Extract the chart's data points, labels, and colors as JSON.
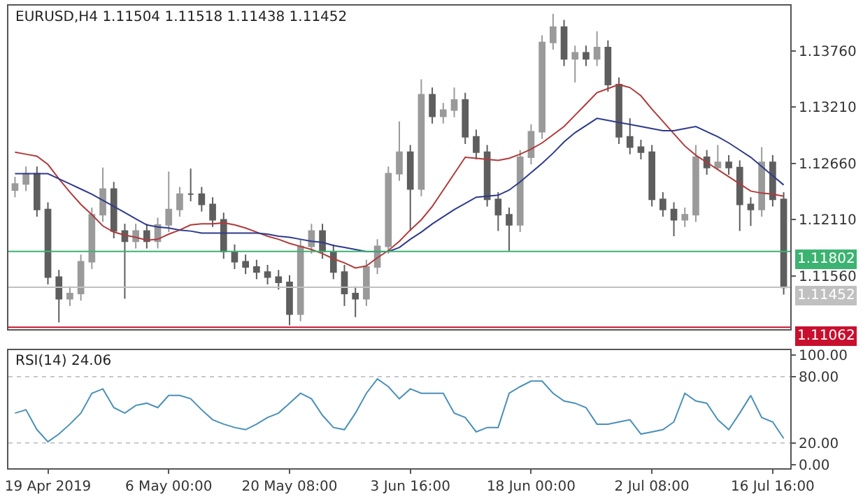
{
  "chart_data": [
    {
      "type": "candlestick",
      "title": "EURUSD,H4 1.11504 1.11518 1.11438 1.11452",
      "colors": [
        "#9a9a9a",
        "#9a9a9a",
        "#5e5e5e",
        "#5e5e5e",
        "#5e5e5e",
        "#9a9a9a",
        "#9a9a9a",
        "#9a9a9a",
        "#9a9a9a",
        "#5e5e5e",
        "#5e5e5e",
        "#9a9a9a",
        "#5e5e5e",
        "#9a9a9a",
        "#9a9a9a",
        "#9a9a9a",
        "#5e5e5e",
        "#5e5e5e",
        "#5e5e5e",
        "#5e5e5e",
        "#5e5e5e",
        "#5e5e5e",
        "#5e5e5e",
        "#5e5e5e",
        "#5e5e5e",
        "#5e5e5e",
        "#9a9a9a",
        "#9a9a9a",
        "#5e5e5e",
        "#5e5e5e",
        "#5e5e5e",
        "#5e5e5e",
        "#9a9a9a",
        "#9a9a9a",
        "#9a9a9a",
        "#9a9a9a",
        "#5e5e5e",
        "#9a9a9a",
        "#5e5e5e",
        "#9a9a9a",
        "#9a9a9a",
        "#5e5e5e",
        "#5e5e5e",
        "#5e5e5e",
        "#5e5e5e",
        "#5e5e5e",
        "#9a9a9a",
        "#9a9a9a",
        "#9a9a9a",
        "#9a9a9a",
        "#5e5e5e",
        "#9a9a9a",
        "#5e5e5e",
        "#9a9a9a",
        "#5e5e5e",
        "#5e5e5e",
        "#5e5e5e",
        "#5e5e5e",
        "#5e5e5e",
        "#5e5e5e",
        "#5e5e5e",
        "#9a9a9a",
        "#9a9a9a",
        "#5e5e5e",
        "#9a9a9a",
        "#5e5e5e",
        "#5e5e5e",
        "#5e5e5e",
        "#9a9a9a",
        "#5e5e5e",
        "#5e5e5e"
      ],
      "categories": [
        null,
        null,
        null,
        null,
        null,
        null,
        null,
        null,
        null,
        null,
        null,
        null,
        null,
        null,
        null,
        null,
        null,
        null,
        null,
        null,
        null,
        null,
        null,
        null,
        null,
        null,
        null,
        null,
        null,
        null,
        null,
        null,
        null,
        null,
        null,
        null,
        null,
        null,
        null,
        null,
        null,
        null,
        null,
        null,
        null,
        null,
        null,
        null,
        null,
        null,
        null,
        null,
        null,
        null,
        null,
        null,
        null,
        null,
        null,
        null,
        null,
        null,
        null,
        null,
        null,
        null,
        null,
        null,
        null,
        null,
        null
      ],
      "ohlc": [
        [
          1.124,
          1.1253,
          1.1233,
          1.1246
        ],
        [
          1.1246,
          1.1263,
          1.1239,
          1.1256
        ],
        [
          1.1256,
          1.1263,
          1.1214,
          1.1221
        ],
        [
          1.1221,
          1.1228,
          1.1148,
          1.1155
        ],
        [
          1.1155,
          1.1162,
          1.1111,
          1.1134
        ],
        [
          1.1134,
          1.1146,
          1.1127,
          1.1139
        ],
        [
          1.1139,
          1.1177,
          1.1132,
          1.117
        ],
        [
          1.117,
          1.1223,
          1.1163,
          1.1216
        ],
        [
          1.1216,
          1.1262,
          1.1209,
          1.1241
        ],
        [
          1.1241,
          1.1248,
          1.1193,
          1.12
        ],
        [
          1.12,
          1.1207,
          1.1134,
          1.119
        ],
        [
          1.119,
          1.1207,
          1.1183,
          1.12
        ],
        [
          1.12,
          1.1207,
          1.1183,
          1.119
        ],
        [
          1.119,
          1.1213,
          1.1183,
          1.1206
        ],
        [
          1.1206,
          1.1258,
          1.1199,
          1.1221
        ],
        [
          1.1221,
          1.1243,
          1.1214,
          1.1236
        ],
        [
          1.1236,
          1.1261,
          1.1229,
          1.1236
        ],
        [
          1.1236,
          1.1243,
          1.1219,
          1.1226
        ],
        [
          1.1226,
          1.1233,
          1.1204,
          1.1211
        ],
        [
          1.1211,
          1.1218,
          1.1173,
          1.118
        ],
        [
          1.118,
          1.1187,
          1.1163,
          1.117
        ],
        [
          1.117,
          1.1177,
          1.1158,
          1.1165
        ],
        [
          1.1165,
          1.1172,
          1.1153,
          1.116
        ],
        [
          1.116,
          1.1167,
          1.1148,
          1.1155
        ],
        [
          1.1155,
          1.1162,
          1.1143,
          1.115
        ],
        [
          1.115,
          1.1157,
          1.1108,
          1.1119
        ],
        [
          1.1119,
          1.1192,
          1.1112,
          1.1185
        ],
        [
          1.1185,
          1.1207,
          1.1178,
          1.12
        ],
        [
          1.12,
          1.1207,
          1.1173,
          1.118
        ],
        [
          1.118,
          1.1187,
          1.1153,
          1.116
        ],
        [
          1.116,
          1.1167,
          1.1127,
          1.1139
        ],
        [
          1.1139,
          1.1146,
          1.1116,
          1.1134
        ],
        [
          1.1134,
          1.1172,
          1.1127,
          1.1165
        ],
        [
          1.1165,
          1.1192,
          1.1158,
          1.1185
        ],
        [
          1.1185,
          1.1263,
          1.1178,
          1.1256
        ],
        [
          1.1256,
          1.1307,
          1.1249,
          1.1277
        ],
        [
          1.1277,
          1.1284,
          1.12,
          1.1241
        ],
        [
          1.1241,
          1.1348,
          1.1234,
          1.1333
        ],
        [
          1.1333,
          1.134,
          1.1305,
          1.1312
        ],
        [
          1.1312,
          1.1325,
          1.1305,
          1.1318
        ],
        [
          1.1318,
          1.134,
          1.1311,
          1.1328
        ],
        [
          1.1328,
          1.1335,
          1.1285,
          1.1292
        ],
        [
          1.1292,
          1.1299,
          1.127,
          1.1277
        ],
        [
          1.1277,
          1.1284,
          1.1224,
          1.1231
        ],
        [
          1.1231,
          1.1238,
          1.12,
          1.1216
        ],
        [
          1.1216,
          1.1223,
          1.118,
          1.1206
        ],
        [
          1.1206,
          1.1279,
          1.1199,
          1.1272
        ],
        [
          1.1272,
          1.1304,
          1.1265,
          1.1297
        ],
        [
          1.1297,
          1.1391,
          1.129,
          1.1384
        ],
        [
          1.1384,
          1.1412,
          1.1377,
          1.1399
        ],
        [
          1.1399,
          1.1406,
          1.1361,
          1.1368
        ],
        [
          1.1368,
          1.1381,
          1.1345,
          1.1374
        ],
        [
          1.1374,
          1.1381,
          1.1361,
          1.1368
        ],
        [
          1.1368,
          1.1395,
          1.1361,
          1.1379
        ],
        [
          1.1379,
          1.1386,
          1.1336,
          1.1343
        ],
        [
          1.1343,
          1.135,
          1.1285,
          1.1292
        ],
        [
          1.1292,
          1.131,
          1.1275,
          1.1282
        ],
        [
          1.1282,
          1.1289,
          1.127,
          1.1277
        ],
        [
          1.1277,
          1.1284,
          1.1224,
          1.1231
        ],
        [
          1.1231,
          1.1238,
          1.1214,
          1.1221
        ],
        [
          1.1221,
          1.1228,
          1.1195,
          1.1211
        ],
        [
          1.1211,
          1.1223,
          1.1204,
          1.1216
        ],
        [
          1.1216,
          1.1284,
          1.1209,
          1.1272
        ],
        [
          1.1272,
          1.1279,
          1.1255,
          1.1262
        ],
        [
          1.1262,
          1.1284,
          1.126,
          1.1267
        ],
        [
          1.1267,
          1.1274,
          1.1255,
          1.1262
        ],
        [
          1.1262,
          1.1269,
          1.12,
          1.1226
        ],
        [
          1.1226,
          1.1233,
          1.1205,
          1.1221
        ],
        [
          1.1221,
          1.1282,
          1.1214,
          1.1267
        ],
        [
          1.1267,
          1.1274,
          1.1224,
          1.1231
        ],
        [
          1.1231,
          1.1238,
          1.1138,
          1.1145
        ]
      ],
      "series": [
        {
          "type": "line",
          "color": "#b03a3a",
          "values": [
            1.1277,
            1.1275,
            1.1273,
            1.1265,
            1.1251,
            1.1238,
            1.1226,
            1.1216,
            1.1205,
            1.1199,
            1.1196,
            1.1194,
            1.1191,
            1.1192,
            1.1197,
            1.1201,
            1.1206,
            1.1207,
            1.1207,
            1.1208,
            1.1206,
            1.1203,
            1.1199,
            1.1195,
            1.1192,
            1.1188,
            1.1185,
            1.1182,
            1.1178,
            1.1173,
            1.1169,
            1.1164,
            1.1166,
            1.1174,
            1.1181,
            1.119,
            1.1201,
            1.1211,
            1.1224,
            1.124,
            1.1256,
            1.1272,
            1.1271,
            1.127,
            1.1269,
            1.1271,
            1.1275,
            1.128,
            1.1286,
            1.1294,
            1.1302,
            1.1313,
            1.1324,
            1.1335,
            1.1339,
            1.1343,
            1.134,
            1.1332,
            1.1319,
            1.1307,
            1.1295,
            1.1283,
            1.1274,
            1.1267,
            1.126,
            1.1253,
            1.1246,
            1.1239,
            1.1237,
            1.1236,
            1.1234
          ]
        },
        {
          "type": "line",
          "color": "#2e3a8c",
          "values": [
            1.1256,
            1.1256,
            1.1256,
            1.1256,
            1.1251,
            1.1246,
            1.1241,
            1.1236,
            1.123,
            1.1224,
            1.1218,
            1.1212,
            1.1206,
            1.1204,
            1.1203,
            1.1201,
            1.12,
            1.1198,
            1.1198,
            1.1198,
            1.1198,
            1.1198,
            1.1198,
            1.1197,
            1.1195,
            1.1194,
            1.1192,
            1.119,
            1.1189,
            1.1186,
            1.1184,
            1.1182,
            1.118,
            1.118,
            1.118,
            1.1184,
            1.1192,
            1.1199,
            1.1207,
            1.1214,
            1.1221,
            1.1227,
            1.1233,
            1.1234,
            1.1235,
            1.124,
            1.1248,
            1.1257,
            1.1266,
            1.1276,
            1.1287,
            1.1296,
            1.1303,
            1.131,
            1.1308,
            1.1306,
            1.1304,
            1.1302,
            1.13,
            1.1298,
            1.1298,
            1.13,
            1.1302,
            1.1297,
            1.1292,
            1.1286,
            1.1279,
            1.1272,
            1.1263,
            1.1254,
            1.1245
          ]
        }
      ],
      "ref_lines": [
        {
          "axis": "y",
          "value": 1.11802,
          "label": "1.11802",
          "color": "#3cb371"
        },
        {
          "axis": "y",
          "value": 1.11452,
          "label": "1.11452",
          "color": "#c0c0c0"
        },
        {
          "axis": "y",
          "value": 1.11062,
          "label": "1.11062",
          "color": "#c8102e"
        }
      ],
      "ylim": [
        1.1104,
        1.142
      ],
      "yticks": [
        {
          "value": 1.1156,
          "label": "1.11560"
        },
        {
          "value": 1.1211,
          "label": "1.12110"
        },
        {
          "value": 1.1266,
          "label": "1.12660"
        },
        {
          "value": 1.1321,
          "label": "1.13210"
        },
        {
          "value": 1.1376,
          "label": "1.13760"
        }
      ],
      "tick_labels": "y"
    },
    {
      "type": "line",
      "title": "RSI(14) 24.06",
      "color": "#4a90b8",
      "categories": [
        null,
        null,
        null,
        "19 Apr 2019",
        null,
        null,
        null,
        null,
        null,
        null,
        null,
        null,
        null,
        null,
        "6 May 00:00",
        null,
        null,
        null,
        null,
        null,
        null,
        null,
        null,
        null,
        null,
        "20 May 08:00",
        null,
        null,
        null,
        null,
        null,
        null,
        null,
        null,
        null,
        null,
        "3 Jun 16:00",
        null,
        null,
        null,
        null,
        null,
        null,
        null,
        null,
        null,
        null,
        "18 Jun 00:00",
        null,
        null,
        null,
        null,
        null,
        null,
        null,
        null,
        null,
        null,
        "2 Jul 08:00",
        null,
        null,
        null,
        null,
        null,
        null,
        null,
        null,
        null,
        null,
        "16 Jul 16:00",
        null
      ],
      "values": [
        47,
        50,
        32,
        21,
        28,
        37,
        47,
        65,
        69,
        52,
        47,
        54,
        56,
        52,
        63,
        63,
        60,
        50,
        41,
        37,
        34,
        32,
        37,
        43,
        47,
        56,
        65,
        60,
        45,
        34,
        32,
        47,
        65,
        78,
        71,
        60,
        69,
        65,
        65,
        65,
        47,
        43,
        30,
        34,
        34,
        65,
        71,
        76,
        76,
        65,
        58,
        56,
        52,
        37,
        37,
        39,
        41,
        28,
        30,
        32,
        39,
        65,
        58,
        56,
        41,
        32,
        47,
        63,
        43,
        39,
        24.06
      ],
      "ref_lines": [
        {
          "axis": "y",
          "value": 20,
          "color": "#c8c8c8",
          "line_style": "dotted"
        },
        {
          "axis": "y",
          "value": 80,
          "color": "#c8c8c8",
          "line_style": "dotted"
        }
      ],
      "ylim": [
        -3,
        104
      ],
      "yticks": [
        {
          "value": 0,
          "label": "0.00"
        },
        {
          "value": 20,
          "label": "20.00"
        },
        {
          "value": 80,
          "label": "80.00"
        },
        {
          "value": 100,
          "label": "100.00"
        }
      ]
    }
  ]
}
